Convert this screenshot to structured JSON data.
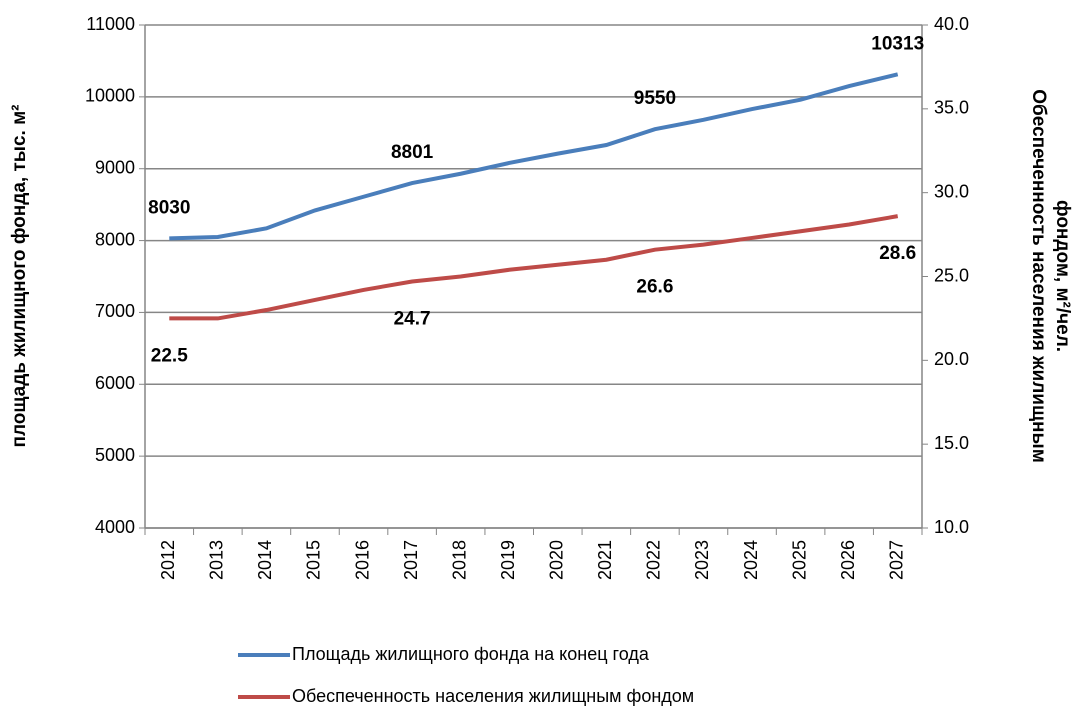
{
  "chart_data": {
    "type": "line",
    "ylabel": "площадь жилищного фонда, тыс. м²",
    "y2label": [
      "Обеспеченность населения жилищным",
      "фондом, м²/чел."
    ],
    "categories": [
      "2012",
      "2013",
      "2014",
      "2015",
      "2016",
      "2017",
      "2018",
      "2019",
      "2020",
      "2021",
      "2022",
      "2023",
      "2024",
      "2025",
      "2026",
      "2027"
    ],
    "series": [
      {
        "name": "Площадь жилищного фонда на конец года",
        "color": "#4a7ebb",
        "values": [
          8030,
          8050,
          8170,
          8420,
          8610,
          8801,
          8930,
          9080,
          9210,
          9330,
          9550,
          9680,
          9830,
          9960,
          10150,
          10313
        ],
        "value_labels": [
          "8030",
          null,
          null,
          null,
          null,
          "8801",
          null,
          null,
          null,
          null,
          "9550",
          null,
          null,
          null,
          null,
          "10313"
        ]
      },
      {
        "name": "Обеспеченность населения жилищным  фондом",
        "color": "#be4b48",
        "axis": "y2",
        "values": [
          22.5,
          22.5,
          23.0,
          23.6,
          24.2,
          24.7,
          25.0,
          25.4,
          25.7,
          26.0,
          26.6,
          26.9,
          27.3,
          27.7,
          28.1,
          28.6
        ],
        "value_labels": [
          "22.5",
          null,
          null,
          null,
          null,
          "24.7",
          null,
          null,
          null,
          null,
          "26.6",
          null,
          null,
          null,
          null,
          "28.6"
        ]
      }
    ],
    "ylim": [
      4000,
      11000
    ],
    "yticks": [
      4000,
      5000,
      6000,
      7000,
      8000,
      9000,
      10000,
      11000
    ],
    "y2lim": [
      10,
      40
    ],
    "y2ticks": [
      {
        "value": 10,
        "label": "10.0"
      },
      {
        "value": 15,
        "label": "15.0"
      },
      {
        "value": 20,
        "label": "20.0"
      },
      {
        "value": 25,
        "label": "25.0"
      },
      {
        "value": 30,
        "label": "30.0"
      },
      {
        "value": 35,
        "label": "35.0"
      },
      {
        "value": 40,
        "label": "40.0"
      }
    ],
    "grid": true,
    "legend": "bottom"
  }
}
